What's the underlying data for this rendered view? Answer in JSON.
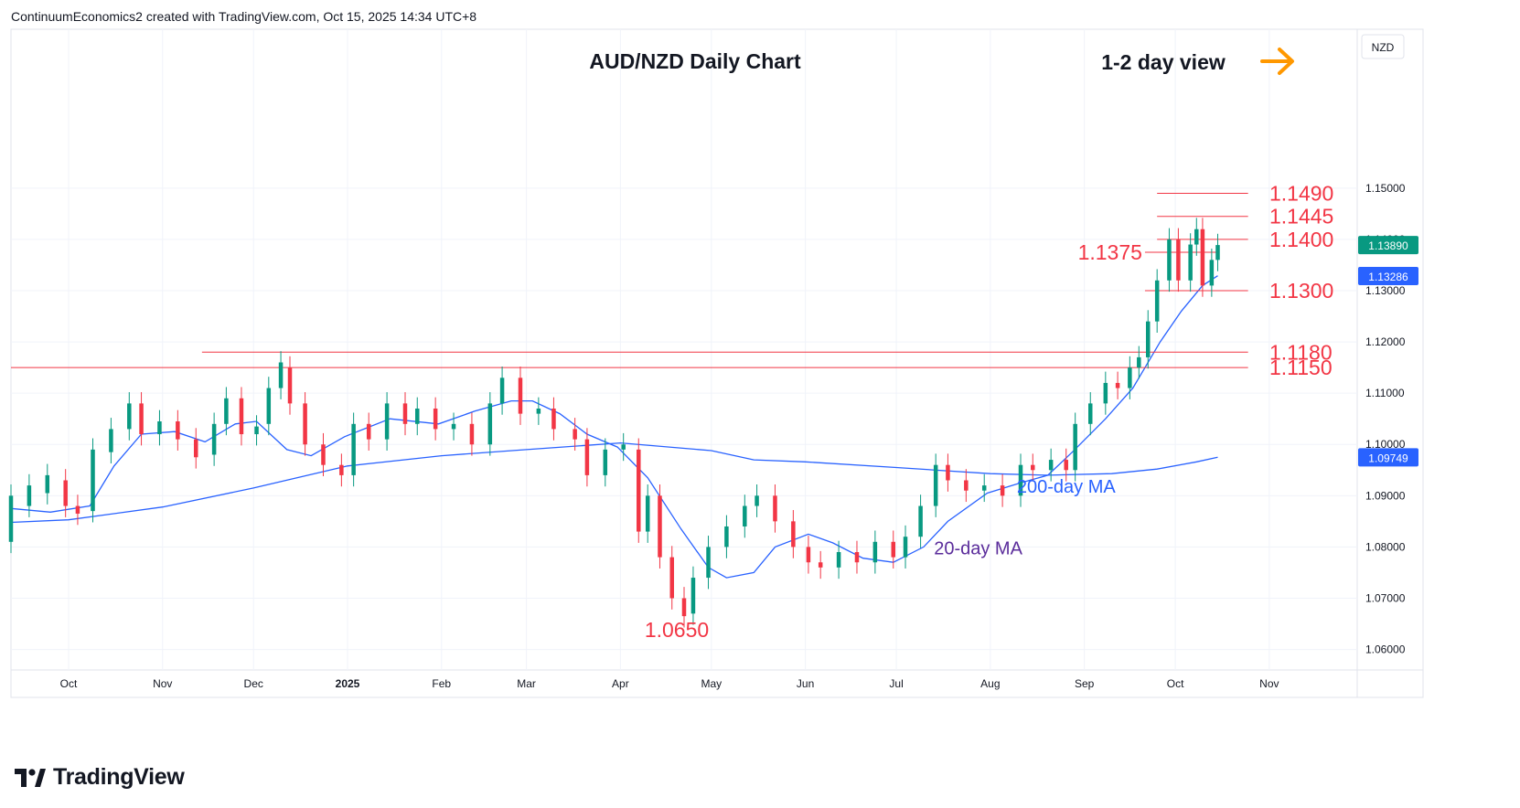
{
  "header": {
    "caption": "ContinuumEconomics2 created with TradingView.com, Oct 15, 2025 14:34 UTC+8"
  },
  "footer": {
    "brand": "TradingView",
    "brand_icon": "tradingview-logo-icon"
  },
  "colors": {
    "up": "#089981",
    "down": "#f23645",
    "level": "#f23645",
    "ma20": "#2962ff",
    "ma200": "#2962ff",
    "arrow": "#ff9800",
    "last_badge": "#089981",
    "ma_badge": "#2962ff"
  },
  "chart_data": {
    "type": "candlestick",
    "title": "AUD/NZD Daily Chart",
    "view_label": "1-2 day view",
    "view_icon": "arrow-right-icon",
    "currency_label": "NZD",
    "y_axis": {
      "ticks": [
        "1.15000",
        "1.14000",
        "1.13000",
        "1.12000",
        "1.11000",
        "1.10000",
        "1.09000",
        "1.08000",
        "1.07000",
        "1.06000"
      ],
      "ylim": [
        1.056,
        1.181
      ]
    },
    "x_axis": {
      "range": [
        "2024-09-12",
        "2025-11-30"
      ],
      "ticks": [
        {
          "date": "2024-10-01",
          "label": "Oct"
        },
        {
          "date": "2024-11-01",
          "label": "Nov"
        },
        {
          "date": "2024-12-01",
          "label": "Dec"
        },
        {
          "date": "2025-01-01",
          "label": "2025",
          "bold": true
        },
        {
          "date": "2025-02-01",
          "label": "Feb"
        },
        {
          "date": "2025-03-01",
          "label": "Mar"
        },
        {
          "date": "2025-04-01",
          "label": "Apr"
        },
        {
          "date": "2025-05-01",
          "label": "May"
        },
        {
          "date": "2025-06-01",
          "label": "Jun"
        },
        {
          "date": "2025-07-01",
          "label": "Jul"
        },
        {
          "date": "2025-08-01",
          "label": "Aug"
        },
        {
          "date": "2025-09-01",
          "label": "Sep"
        },
        {
          "date": "2025-10-01",
          "label": "Oct"
        },
        {
          "date": "2025-11-01",
          "label": "Nov"
        }
      ]
    },
    "last_price": {
      "value": 1.1389,
      "label": "1.13890"
    },
    "ma_value": {
      "value": 1.13286,
      "label": "1.13286"
    },
    "ma200_value": {
      "value": 1.09749,
      "label": "1.09749"
    },
    "levels": [
      {
        "value": 1.149,
        "label": "1.1490",
        "from": "2025-09-25",
        "to": "2025-10-25",
        "label_side": "right"
      },
      {
        "value": 1.1445,
        "label": "1.1445",
        "from": "2025-09-25",
        "to": "2025-10-25",
        "label_side": "right"
      },
      {
        "value": 1.14,
        "label": "1.1400",
        "from": "2025-09-25",
        "to": "2025-10-25",
        "label_side": "right"
      },
      {
        "value": 1.1375,
        "label": "1.1375",
        "from": "2025-09-21",
        "to": "2025-10-15",
        "label_side": "left"
      },
      {
        "value": 1.13,
        "label": "1.1300",
        "from": "2025-09-21",
        "to": "2025-10-25",
        "label_side": "right"
      },
      {
        "value": 1.118,
        "label": "1.1180",
        "from": "2024-11-14",
        "to": "2025-10-25",
        "label_side": "right"
      },
      {
        "value": 1.115,
        "label": "1.1150",
        "from": "2024-09-12",
        "to": "2025-10-25",
        "label_side": "right"
      }
    ],
    "low_annotation": {
      "value": 1.065,
      "label": "1.0650",
      "date": "2025-04-22"
    },
    "ma_labels": [
      {
        "label": "20-day MA",
        "date": "2025-07-28",
        "value": 1.08
      },
      {
        "label": "200-day MA",
        "date": "2025-08-20",
        "value": 1.092
      }
    ],
    "ma20": [
      [
        "2024-09-12",
        1.0875
      ],
      [
        "2024-09-25",
        1.0868
      ],
      [
        "2024-10-08",
        1.088
      ],
      [
        "2024-10-16",
        1.0958
      ],
      [
        "2024-10-25",
        1.102
      ],
      [
        "2024-11-05",
        1.1025
      ],
      [
        "2024-11-15",
        1.1005
      ],
      [
        "2024-11-25",
        1.104
      ],
      [
        "2024-12-02",
        1.1045
      ],
      [
        "2024-12-12",
        1.099
      ],
      [
        "2024-12-20",
        1.0978
      ],
      [
        "2024-12-31",
        1.1015
      ],
      [
        "2025-01-15",
        1.105
      ],
      [
        "2025-01-31",
        1.104
      ],
      [
        "2025-02-12",
        1.1065
      ],
      [
        "2025-02-24",
        1.1085
      ],
      [
        "2025-03-03",
        1.1085
      ],
      [
        "2025-03-12",
        1.106
      ],
      [
        "2025-03-21",
        1.102
      ],
      [
        "2025-03-31",
        1.0995
      ],
      [
        "2025-04-10",
        1.0935
      ],
      [
        "2025-04-21",
        1.0835
      ],
      [
        "2025-04-30",
        1.076
      ],
      [
        "2025-05-06",
        1.074
      ],
      [
        "2025-05-15",
        1.075
      ],
      [
        "2025-05-22",
        1.08
      ],
      [
        "2025-06-02",
        1.0825
      ],
      [
        "2025-06-10",
        1.0808
      ],
      [
        "2025-06-20",
        1.0778
      ],
      [
        "2025-06-30",
        1.077
      ],
      [
        "2025-07-10",
        1.08
      ],
      [
        "2025-07-18",
        1.085
      ],
      [
        "2025-07-31",
        1.0905
      ],
      [
        "2025-08-11",
        1.0925
      ],
      [
        "2025-08-20",
        1.094
      ],
      [
        "2025-08-28",
        1.0985
      ],
      [
        "2025-09-08",
        1.105
      ],
      [
        "2025-09-17",
        1.111
      ],
      [
        "2025-09-26",
        1.12
      ],
      [
        "2025-10-03",
        1.126
      ],
      [
        "2025-10-10",
        1.131
      ],
      [
        "2025-10-15",
        1.1329
      ]
    ],
    "ma200": [
      [
        "2024-09-12",
        1.0848
      ],
      [
        "2024-10-01",
        1.0853
      ],
      [
        "2024-11-01",
        1.0878
      ],
      [
        "2024-12-01",
        1.0915
      ],
      [
        "2025-01-01",
        1.0958
      ],
      [
        "2025-02-01",
        1.0978
      ],
      [
        "2025-03-01",
        1.099
      ],
      [
        "2025-04-01",
        1.1003
      ],
      [
        "2025-05-01",
        1.0988
      ],
      [
        "2025-05-15",
        1.097
      ],
      [
        "2025-06-01",
        1.0966
      ],
      [
        "2025-07-01",
        1.0955
      ],
      [
        "2025-08-01",
        1.0943
      ],
      [
        "2025-08-20",
        1.094
      ],
      [
        "2025-09-10",
        1.0943
      ],
      [
        "2025-09-25",
        1.0952
      ],
      [
        "2025-10-08",
        1.0966
      ],
      [
        "2025-10-15",
        1.0975
      ]
    ],
    "candles": [
      [
        "2024-09-12",
        1.081,
        1.09
      ],
      [
        "2024-09-18",
        1.088,
        1.092
      ],
      [
        "2024-09-24",
        1.0905,
        1.094
      ],
      [
        "2024-09-30",
        1.093,
        1.088
      ],
      [
        "2024-10-04",
        1.088,
        1.0865
      ],
      [
        "2024-10-09",
        1.087,
        1.099
      ],
      [
        "2024-10-15",
        1.0985,
        1.103
      ],
      [
        "2024-10-21",
        1.103,
        1.108
      ],
      [
        "2024-10-25",
        1.108,
        1.102
      ],
      [
        "2024-10-31",
        1.102,
        1.1045
      ],
      [
        "2024-11-06",
        1.1045,
        1.101
      ],
      [
        "2024-11-12",
        1.101,
        1.0975
      ],
      [
        "2024-11-18",
        1.098,
        1.104
      ],
      [
        "2024-11-22",
        1.104,
        1.109
      ],
      [
        "2024-11-27",
        1.109,
        1.102
      ],
      [
        "2024-12-02",
        1.102,
        1.1035
      ],
      [
        "2024-12-06",
        1.104,
        1.111
      ],
      [
        "2024-12-10",
        1.111,
        1.116
      ],
      [
        "2024-12-13",
        1.115,
        1.108
      ],
      [
        "2024-12-18",
        1.108,
        1.1
      ],
      [
        "2024-12-24",
        1.1,
        1.096
      ],
      [
        "2024-12-30",
        1.096,
        1.094
      ],
      [
        "2025-01-03",
        1.094,
        1.104
      ],
      [
        "2025-01-08",
        1.104,
        1.101
      ],
      [
        "2025-01-14",
        1.101,
        1.108
      ],
      [
        "2025-01-20",
        1.108,
        1.104
      ],
      [
        "2025-01-24",
        1.104,
        1.107
      ],
      [
        "2025-01-30",
        1.107,
        1.103
      ],
      [
        "2025-02-05",
        1.103,
        1.104
      ],
      [
        "2025-02-11",
        1.104,
        1.1
      ],
      [
        "2025-02-17",
        1.1,
        1.108
      ],
      [
        "2025-02-21",
        1.108,
        1.113
      ],
      [
        "2025-02-27",
        1.113,
        1.106
      ],
      [
        "2025-03-05",
        1.106,
        1.107
      ],
      [
        "2025-03-10",
        1.107,
        1.103
      ],
      [
        "2025-03-17",
        1.103,
        1.101
      ],
      [
        "2025-03-21",
        1.101,
        1.094
      ],
      [
        "2025-03-27",
        1.094,
        1.099
      ],
      [
        "2025-04-02",
        1.099,
        1.1
      ],
      [
        "2025-04-07",
        1.099,
        1.083
      ],
      [
        "2025-04-10",
        1.083,
        1.09
      ],
      [
        "2025-04-14",
        1.09,
        1.078
      ],
      [
        "2025-04-18",
        1.078,
        1.07
      ],
      [
        "2025-04-22",
        1.07,
        1.0665
      ],
      [
        "2025-04-25",
        1.067,
        1.074
      ],
      [
        "2025-04-30",
        1.074,
        1.08
      ],
      [
        "2025-05-06",
        1.08,
        1.084
      ],
      [
        "2025-05-12",
        1.084,
        1.088
      ],
      [
        "2025-05-16",
        1.088,
        1.09
      ],
      [
        "2025-05-22",
        1.09,
        1.085
      ],
      [
        "2025-05-28",
        1.085,
        1.08
      ],
      [
        "2025-06-02",
        1.08,
        1.077
      ],
      [
        "2025-06-06",
        1.077,
        1.076
      ],
      [
        "2025-06-12",
        1.076,
        1.079
      ],
      [
        "2025-06-18",
        1.079,
        1.077
      ],
      [
        "2025-06-24",
        1.077,
        1.081
      ],
      [
        "2025-06-30",
        1.081,
        1.078
      ],
      [
        "2025-07-04",
        1.078,
        1.082
      ],
      [
        "2025-07-09",
        1.082,
        1.088
      ],
      [
        "2025-07-14",
        1.088,
        1.096
      ],
      [
        "2025-07-18",
        1.096,
        1.093
      ],
      [
        "2025-07-24",
        1.093,
        1.091
      ],
      [
        "2025-07-30",
        1.091,
        1.092
      ],
      [
        "2025-08-05",
        1.092,
        1.09
      ],
      [
        "2025-08-11",
        1.09,
        1.096
      ],
      [
        "2025-08-15",
        1.096,
        1.095
      ],
      [
        "2025-08-21",
        1.095,
        1.097
      ],
      [
        "2025-08-26",
        1.097,
        1.095
      ],
      [
        "2025-08-29",
        1.095,
        1.104
      ],
      [
        "2025-09-03",
        1.104,
        1.108
      ],
      [
        "2025-09-08",
        1.108,
        1.112
      ],
      [
        "2025-09-12",
        1.112,
        1.111
      ],
      [
        "2025-09-16",
        1.111,
        1.115
      ],
      [
        "2025-09-19",
        1.115,
        1.117
      ],
      [
        "2025-09-22",
        1.117,
        1.124
      ],
      [
        "2025-09-25",
        1.124,
        1.132
      ],
      [
        "2025-09-29",
        1.132,
        1.14
      ],
      [
        "2025-10-02",
        1.14,
        1.132
      ],
      [
        "2025-10-06",
        1.132,
        1.139
      ],
      [
        "2025-10-08",
        1.139,
        1.142
      ],
      [
        "2025-10-10",
        1.142,
        1.131
      ],
      [
        "2025-10-13",
        1.131,
        1.136
      ],
      [
        "2025-10-15",
        1.136,
        1.1389
      ]
    ]
  }
}
